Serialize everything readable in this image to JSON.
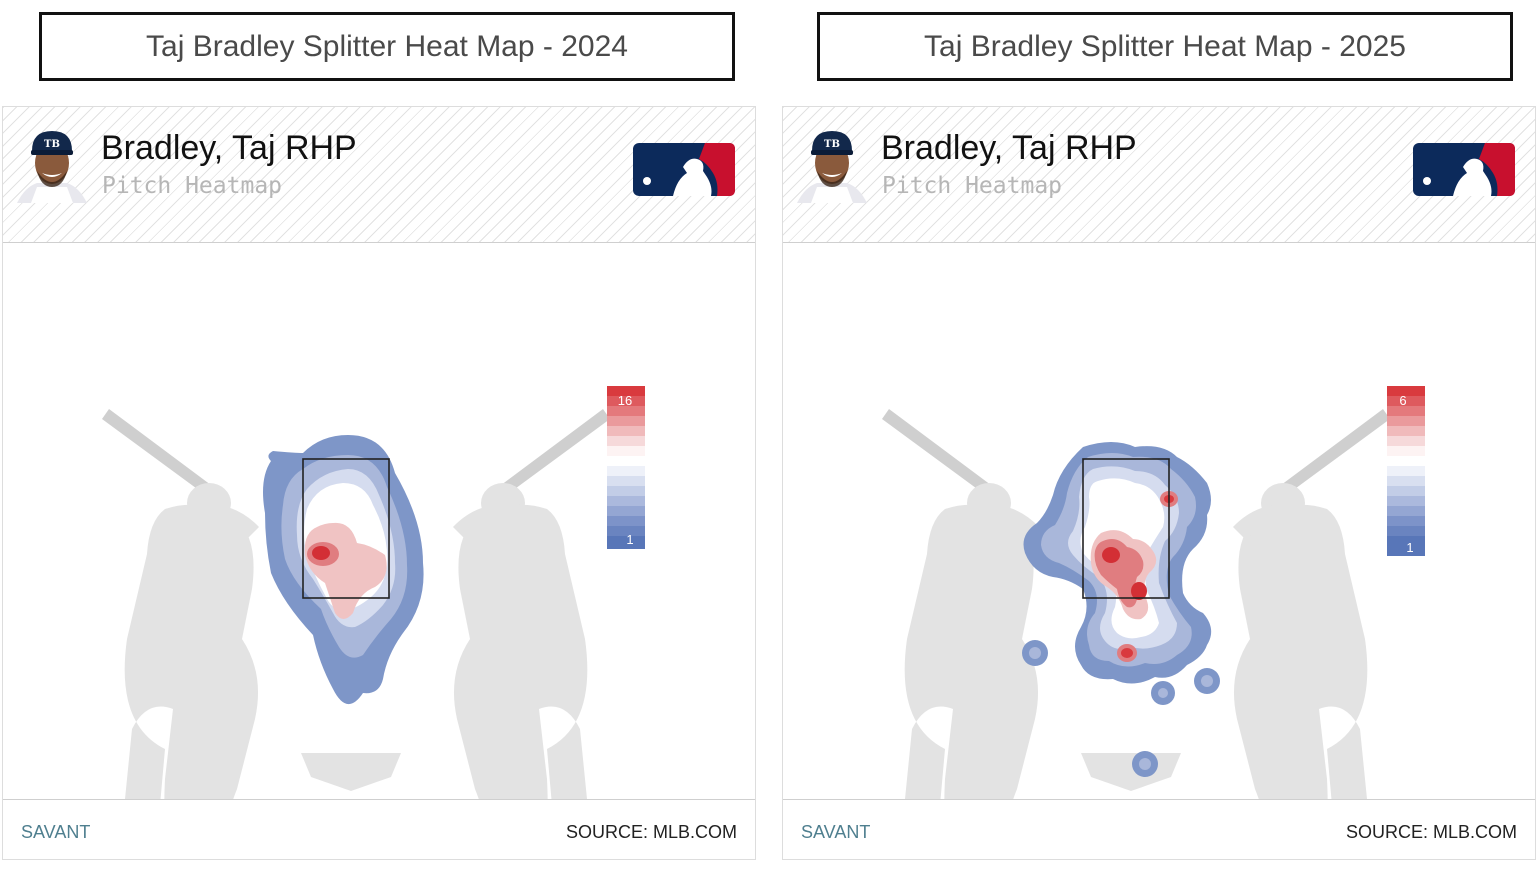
{
  "chart_data": [
    {
      "type": "heatmap",
      "title": "Taj Bradley Splitter Heat Map - 2024",
      "player": "Bradley, Taj RHP",
      "subtitle": "Pitch Heatmap",
      "legend": {
        "max": "16",
        "min": "1",
        "placement": "right"
      },
      "palette": {
        "low": "#5876b8",
        "mid": "#ffffff",
        "high": "#d93a3e"
      },
      "hotspots": [
        {
          "location": "middle-left of zone",
          "level": "max"
        },
        {
          "location": "center of zone",
          "level": "high"
        }
      ],
      "footer": {
        "left": "SAVANT",
        "right": "SOURCE: MLB.COM"
      }
    },
    {
      "type": "heatmap",
      "title": "Taj Bradley Splitter Heat Map - 2025",
      "player": "Bradley, Taj RHP",
      "subtitle": "Pitch Heatmap",
      "legend": {
        "max": "6",
        "min": "1",
        "placement": "right"
      },
      "palette": {
        "low": "#5876b8",
        "mid": "#ffffff",
        "high": "#d93a3e"
      },
      "hotspots": [
        {
          "location": "middle-left of zone",
          "level": "max"
        },
        {
          "location": "lower-middle of zone",
          "level": "max"
        },
        {
          "location": "below zone",
          "level": "high"
        }
      ],
      "footer": {
        "left": "SAVANT",
        "right": "SOURCE: MLB.COM"
      }
    }
  ]
}
